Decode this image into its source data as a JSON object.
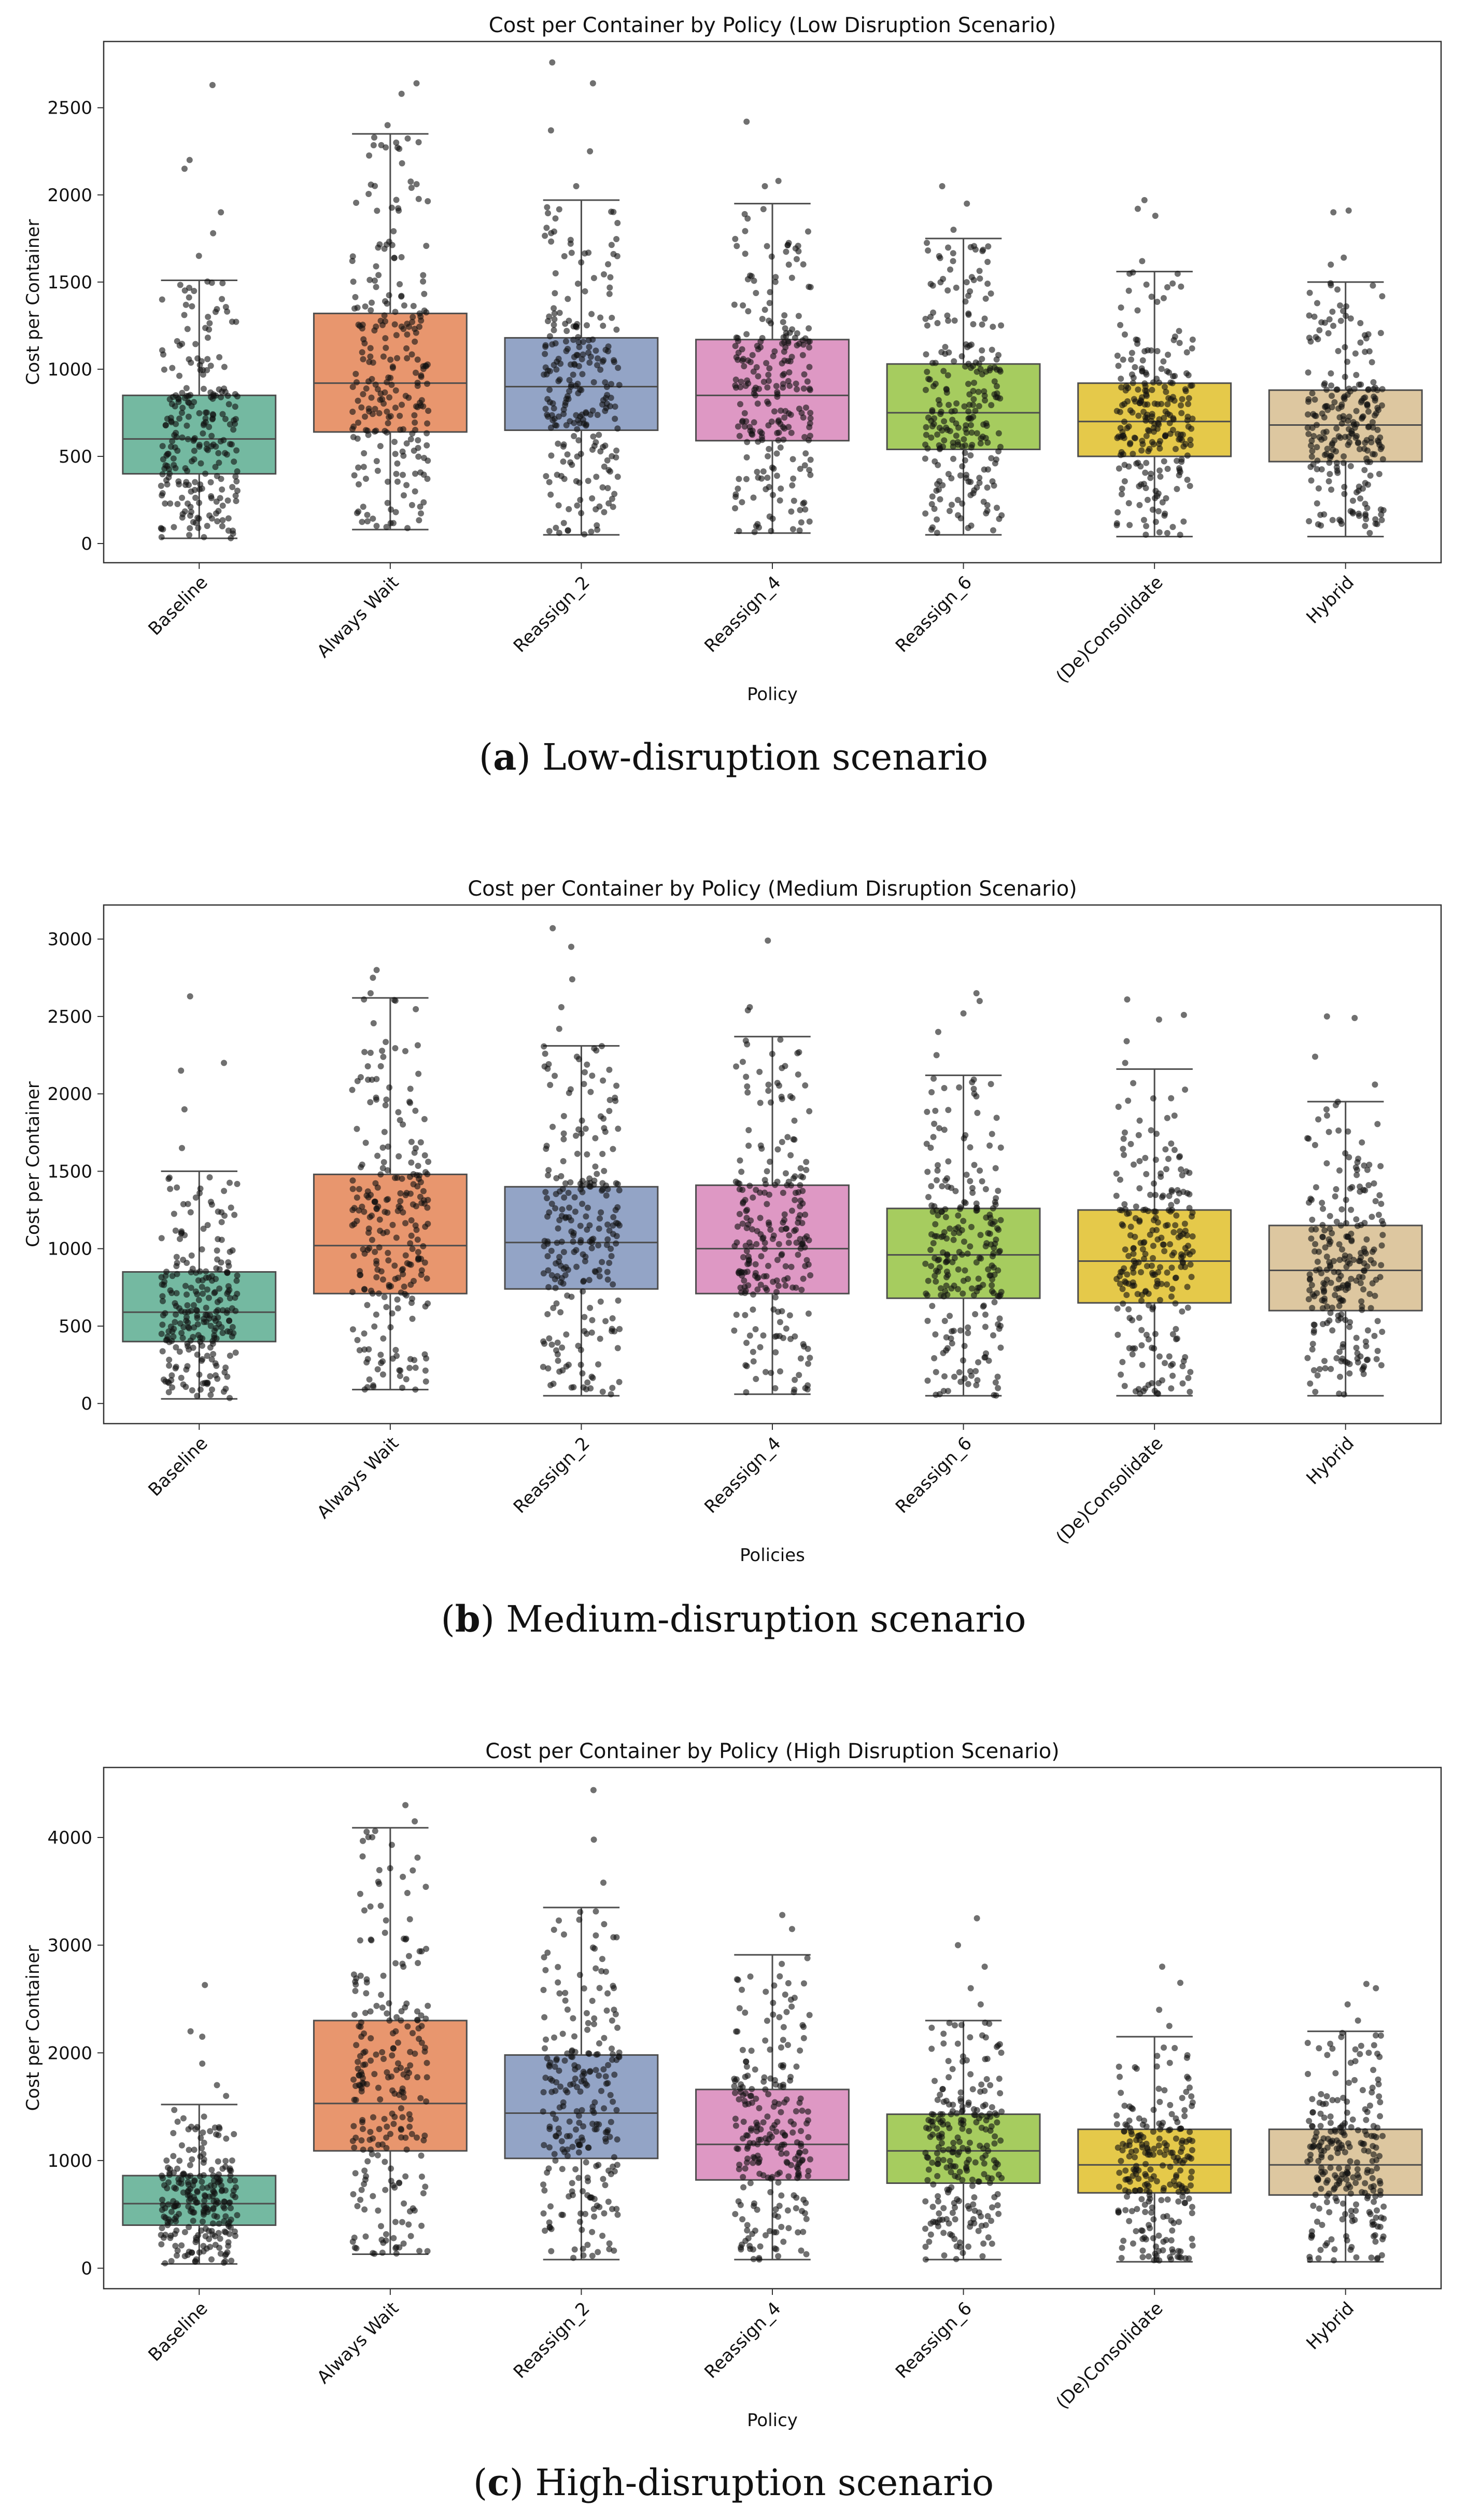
{
  "chart_data": [
    {
      "type": "box",
      "title": "Cost per Container by Policy (Low Disruption Scenario)",
      "xlabel": "Policy",
      "ylabel": "Cost per Container",
      "ylim": [
        -110,
        2880
      ],
      "yticks": [
        0,
        500,
        1000,
        1500,
        2000,
        2500
      ],
      "categories": [
        "Baseline",
        "Always Wait",
        "Reassign_2",
        "Reassign_4",
        "Reassign_6",
        "(De)Consolidate",
        "Hybrid"
      ],
      "series": [
        {
          "name": "Baseline",
          "whisker_low": 30,
          "q1": 400,
          "median": 600,
          "q3": 850,
          "whisker_high": 1510,
          "outliers": [
            1650,
            1780,
            1900,
            2150,
            2200,
            2630
          ]
        },
        {
          "name": "Always Wait",
          "whisker_low": 80,
          "q1": 640,
          "median": 920,
          "q3": 1320,
          "whisker_high": 2350,
          "outliers": [
            2400,
            2580,
            2640
          ]
        },
        {
          "name": "Reassign_2",
          "whisker_low": 50,
          "q1": 650,
          "median": 900,
          "q3": 1180,
          "whisker_high": 1970,
          "outliers": [
            2050,
            2250,
            2370,
            2640,
            2760
          ]
        },
        {
          "name": "Reassign_4",
          "whisker_low": 60,
          "q1": 590,
          "median": 850,
          "q3": 1170,
          "whisker_high": 1950,
          "outliers": [
            2050,
            2080,
            2420
          ]
        },
        {
          "name": "Reassign_6",
          "whisker_low": 50,
          "q1": 540,
          "median": 750,
          "q3": 1030,
          "whisker_high": 1750,
          "outliers": [
            1800,
            1950,
            2050
          ]
        },
        {
          "name": "(De)Consolidate",
          "whisker_low": 40,
          "q1": 500,
          "median": 700,
          "q3": 920,
          "whisker_high": 1560,
          "outliers": [
            1620,
            1880,
            1920,
            1970
          ]
        },
        {
          "name": "Hybrid",
          "whisker_low": 40,
          "q1": 470,
          "median": 680,
          "q3": 880,
          "whisker_high": 1500,
          "outliers": [
            1600,
            1640,
            1900,
            1910
          ]
        }
      ],
      "caption_label": "a",
      "caption_text": ") Low-disruption scenario"
    },
    {
      "type": "box",
      "title": "Cost per Container by Policy (Medium Disruption Scenario)",
      "xlabel": "Policies",
      "ylabel": "Cost per Container",
      "ylim": [
        -130,
        3220
      ],
      "yticks": [
        0,
        500,
        1000,
        1500,
        2000,
        2500,
        3000
      ],
      "categories": [
        "Baseline",
        "Always Wait",
        "Reassign_2",
        "Reassign_4",
        "Reassign_6",
        "(De)Consolidate",
        "Hybrid"
      ],
      "series": [
        {
          "name": "Baseline",
          "whisker_low": 30,
          "q1": 400,
          "median": 590,
          "q3": 850,
          "whisker_high": 1500,
          "outliers": [
            1650,
            1900,
            2150,
            2200,
            2630
          ]
        },
        {
          "name": "Always Wait",
          "whisker_low": 90,
          "q1": 710,
          "median": 1020,
          "q3": 1480,
          "whisker_high": 2620,
          "outliers": [
            2650,
            2750,
            2800
          ]
        },
        {
          "name": "Reassign_2",
          "whisker_low": 50,
          "q1": 740,
          "median": 1040,
          "q3": 1400,
          "whisker_high": 2310,
          "outliers": [
            2420,
            2560,
            2740,
            2950,
            3070
          ]
        },
        {
          "name": "Reassign_4",
          "whisker_low": 60,
          "q1": 710,
          "median": 1000,
          "q3": 1410,
          "whisker_high": 2370,
          "outliers": [
            2540,
            2560,
            2990
          ]
        },
        {
          "name": "Reassign_6",
          "whisker_low": 50,
          "q1": 680,
          "median": 960,
          "q3": 1260,
          "whisker_high": 2120,
          "outliers": [
            2250,
            2400,
            2520,
            2600,
            2650
          ]
        },
        {
          "name": "(De)Consolidate",
          "whisker_low": 50,
          "q1": 650,
          "median": 920,
          "q3": 1250,
          "whisker_high": 2160,
          "outliers": [
            2200,
            2340,
            2480,
            2510,
            2610
          ]
        },
        {
          "name": "Hybrid",
          "whisker_low": 50,
          "q1": 600,
          "median": 860,
          "q3": 1150,
          "whisker_high": 1950,
          "outliers": [
            2060,
            2240,
            2490,
            2500
          ]
        }
      ],
      "caption_label": "b",
      "caption_text": ") Medium-disruption scenario"
    },
    {
      "type": "box",
      "title": "Cost per Container by Policy (High Disruption Scenario)",
      "xlabel": "Policy",
      "ylabel": "Cost per Container",
      "ylim": [
        -190,
        4650
      ],
      "yticks": [
        0,
        1000,
        2000,
        3000,
        4000
      ],
      "categories": [
        "Baseline",
        "Always Wait",
        "Reassign_2",
        "Reassign_4",
        "Reassign_6",
        "(De)Consolidate",
        "Hybrid"
      ],
      "series": [
        {
          "name": "Baseline",
          "whisker_low": 40,
          "q1": 400,
          "median": 600,
          "q3": 860,
          "whisker_high": 1520,
          "outliers": [
            1600,
            1700,
            1900,
            2150,
            2200,
            2630
          ]
        },
        {
          "name": "Always Wait",
          "whisker_low": 130,
          "q1": 1090,
          "median": 1530,
          "q3": 2300,
          "whisker_high": 4090,
          "outliers": [
            4150,
            4300
          ]
        },
        {
          "name": "Reassign_2",
          "whisker_low": 80,
          "q1": 1020,
          "median": 1440,
          "q3": 1980,
          "whisker_high": 3350,
          "outliers": [
            3580,
            3980,
            4440
          ]
        },
        {
          "name": "Reassign_4",
          "whisker_low": 80,
          "q1": 820,
          "median": 1150,
          "q3": 1660,
          "whisker_high": 2910,
          "outliers": [
            3150,
            3280
          ]
        },
        {
          "name": "Reassign_6",
          "whisker_low": 80,
          "q1": 790,
          "median": 1090,
          "q3": 1430,
          "whisker_high": 2300,
          "outliers": [
            2450,
            2600,
            2800,
            3000,
            3250
          ]
        },
        {
          "name": "(De)Consolidate",
          "whisker_low": 60,
          "q1": 700,
          "median": 960,
          "q3": 1290,
          "whisker_high": 2150,
          "outliers": [
            2250,
            2400,
            2650,
            2800
          ]
        },
        {
          "name": "Hybrid",
          "whisker_low": 60,
          "q1": 680,
          "median": 960,
          "q3": 1290,
          "whisker_high": 2200,
          "outliers": [
            2300,
            2450,
            2600,
            2640
          ]
        }
      ],
      "caption_label": "c",
      "caption_text": ") High-disruption scenario"
    }
  ],
  "colors": {
    "Baseline": "#74b9a1",
    "Always Wait": "#e8966e",
    "Reassign_2": "#93a4c6",
    "Reassign_4": "#de98c4",
    "Reassign_6": "#a6cc5f",
    "(De)Consolidate": "#e5c94a",
    "Hybrid": "#ddc7a0",
    "axis": "#333333",
    "box_edge": "#4d4d4d",
    "points": "#111111"
  }
}
